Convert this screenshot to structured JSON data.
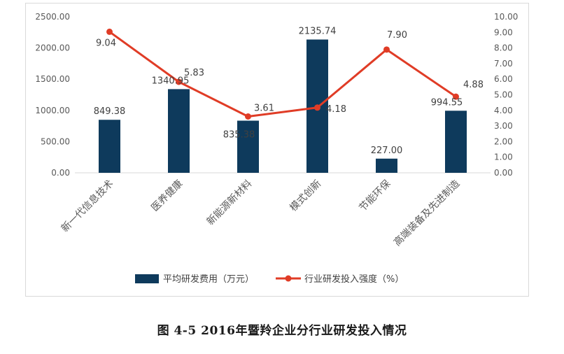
{
  "chart_data": {
    "type": "bar+line",
    "categories": [
      "新一代信息技术",
      "医养健康",
      "新能源新材料",
      "模式创新",
      "节能环保",
      "高端装备及先进制造"
    ],
    "series": [
      {
        "name": "平均研发费用（万元）",
        "type": "bar",
        "axis": "left",
        "color": "#0e3a5c",
        "values": [
          849.38,
          1340.95,
          835.38,
          2135.74,
          227.0,
          994.55
        ],
        "labels": [
          "849.38",
          "1340.95",
          "835.38",
          "2135.74",
          "227.00",
          "994.55"
        ]
      },
      {
        "name": "行业研发投入强度（%）",
        "type": "line",
        "axis": "right",
        "color": "#e03c26",
        "values": [
          9.04,
          5.83,
          3.61,
          4.18,
          7.9,
          4.88
        ],
        "labels": [
          "9.04",
          "5.83",
          "3.61",
          "4.18",
          "7.90",
          "4.88"
        ]
      }
    ],
    "y_left": {
      "ylim": [
        0,
        2500
      ],
      "ticks": [
        "0.00",
        "500.00",
        "1000.00",
        "1500.00",
        "2000.00",
        "2500.00"
      ]
    },
    "y_right": {
      "ylim": [
        0,
        10
      ],
      "ticks": [
        "0.00",
        "1.00",
        "2.00",
        "3.00",
        "4.00",
        "5.00",
        "6.00",
        "7.00",
        "8.00",
        "9.00",
        "10.00"
      ]
    },
    "grid": false,
    "legend": "bottom"
  },
  "caption": {
    "prefix": "图 4-5 2016",
    "rest": "年暨羚企业分行业研发投入情况"
  }
}
